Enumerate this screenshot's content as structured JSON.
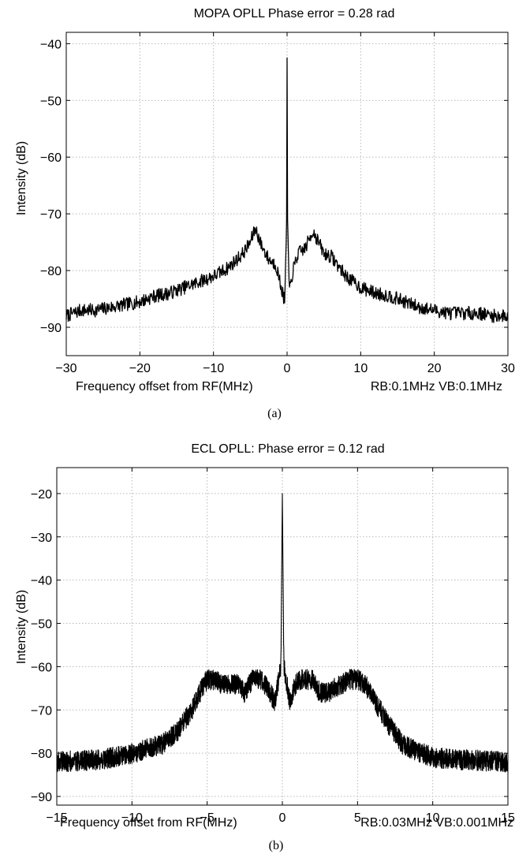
{
  "chart_data": [
    {
      "type": "line",
      "title": "MOPA OPLL Phase error = 0.28 rad",
      "xlabel": "Frequency offset from RF(MHz)",
      "xlabel_note": "RB:0.1MHz VB:0.1MHz",
      "ylabel": "Intensity (dB)",
      "caption": "(a)",
      "xlim": [
        -30,
        30
      ],
      "ylim": [
        -95,
        -38
      ],
      "xticks": [
        -30,
        -20,
        -10,
        0,
        10,
        20,
        30
      ],
      "yticks": [
        -90,
        -80,
        -70,
        -60,
        -50,
        -40
      ],
      "xtick_labels": [
        "−30",
        "−20",
        "−10",
        "0",
        "10",
        "20",
        "30"
      ],
      "ytick_labels": [
        "−90",
        "−80",
        "−70",
        "−60",
        "−50",
        "−40"
      ],
      "grid": true,
      "series": [
        {
          "x": [
            -30,
            -28,
            -26,
            -24,
            -22,
            -20,
            -18,
            -16,
            -14,
            -12,
            -10,
            -8,
            -6,
            -5,
            -4.3,
            -3.5,
            -2.5,
            -1.5,
            -0.8,
            -0.3,
            -0.05,
            0,
            0.05,
            0.3,
            0.8,
            1.5,
            2.5,
            3.5,
            4.3,
            5,
            6,
            8,
            10,
            12,
            14,
            16,
            18,
            20,
            22,
            24,
            26,
            28,
            30
          ],
          "y": [
            -88,
            -87,
            -87,
            -86.5,
            -86,
            -85.5,
            -84.5,
            -84,
            -83,
            -82,
            -81,
            -79.5,
            -77,
            -75,
            -72.5,
            -75.5,
            -78,
            -79,
            -83,
            -85.5,
            -70,
            -42.5,
            -70,
            -84,
            -80,
            -77,
            -76,
            -73,
            -75,
            -77,
            -77.5,
            -81,
            -83,
            -84,
            -84.5,
            -85.5,
            -86.5,
            -87,
            -87.5,
            -87.5,
            -87.5,
            -88,
            -88
          ]
        }
      ]
    },
    {
      "type": "line",
      "title": "ECL OPLL: Phase error = 0.12 rad",
      "xlabel": "Frequency offset from RF(MHz)",
      "xlabel_note": "RB:0.03MHz VB:0.001MHz",
      "ylabel": "Intensity (dB)",
      "caption": "(b)",
      "xlim": [
        -15,
        15
      ],
      "ylim": [
        -92,
        -14
      ],
      "xticks": [
        -15,
        -10,
        -5,
        0,
        5,
        10,
        15
      ],
      "yticks": [
        -90,
        -80,
        -70,
        -60,
        -50,
        -40,
        -30,
        -20
      ],
      "xtick_labels": [
        "−15",
        "−10",
        "−5",
        "0",
        "5",
        "10",
        "15"
      ],
      "ytick_labels": [
        "−90",
        "−80",
        "−70",
        "−60",
        "−50",
        "−40",
        "−30",
        "−20"
      ],
      "grid": true,
      "series": [
        {
          "x": [
            -15,
            -12,
            -10,
            -8,
            -7,
            -6,
            -5.5,
            -5,
            -4.5,
            -4,
            -3,
            -2.5,
            -2,
            -1.5,
            -1,
            -0.5,
            -0.1,
            0,
            0.1,
            0.5,
            1,
            1.5,
            2,
            2.5,
            3,
            4,
            4.5,
            5,
            5.5,
            6,
            7,
            8,
            10,
            12,
            15
          ],
          "y": [
            -82,
            -81.5,
            -80,
            -78,
            -75,
            -70,
            -66,
            -63,
            -63,
            -64,
            -64,
            -66,
            -63,
            -63,
            -65,
            -68,
            -60,
            -20,
            -60,
            -68,
            -63,
            -63,
            -63,
            -66,
            -66,
            -64,
            -63,
            -63,
            -64,
            -67,
            -73,
            -78,
            -81,
            -81.5,
            -82
          ]
        }
      ]
    }
  ]
}
